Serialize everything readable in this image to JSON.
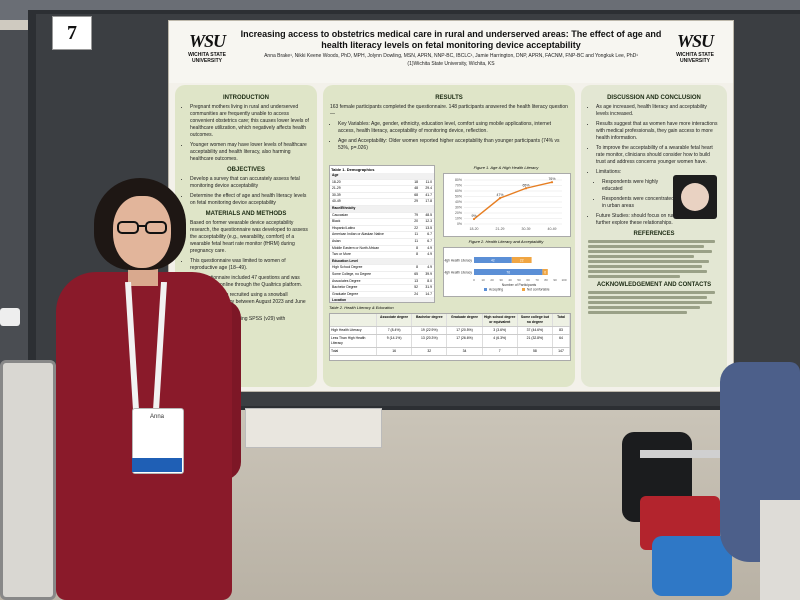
{
  "scene": {
    "board_number": "7"
  },
  "poster": {
    "title": "Increasing access to obstetrics medical care in rural and underserved areas: The effect of age and health literacy levels on fetal monitoring device acceptability",
    "authors": "Anna Brake¹, Nikki Keene Woods, PhD, MPH, Jolynn Dowling, MSN, APRN, NNP-BC, IBCLC¹, Jamie Harrington, DNP, APRN, FACNM, FNP-BC and Yongkuk Lee, PhD¹",
    "affiliation": "(1)Wichita State University, Wichita, KS",
    "logo_mark": "WSU",
    "logo_text": "WICHITA STATE UNIVERSITY",
    "introduction": {
      "heading": "INTRODUCTION",
      "bullets": [
        "Pregnant mothers living in rural and underserved communities are frequently unable to access convenient obstetrics care; this causes lower levels of healthcare utilization, which negatively affects health outcomes.",
        "Younger women may have lower levels of healthcare acceptability and health literacy, also harming healthcare outcomes."
      ]
    },
    "objectives": {
      "heading": "OBJECTIVES",
      "bullets": [
        "Develop a survey that can accurately assess fetal monitoring device acceptability",
        "Determine the effect of age and health literacy levels on fetal monitoring device acceptability"
      ]
    },
    "materials": {
      "heading": "MATERIALS AND METHODS",
      "bullets": [
        "Based on former wearable device acceptability research, the questionnaire was developed to assess the acceptability (e.g., wearability, comfort) of a wearable fetal heart rate monitor (fHRM) during pregnancy care.",
        "This questionnaire was limited to women of reproductive age (18–49).",
        "The questionnaire included 47 questions and was administered online through the Qualtrics platform.",
        "Participants were recruited using a snowball recruitment strategy between August 2023 and June 2024.",
        "Data were analyzed using SPSS (v29) with descriptive statistics."
      ]
    },
    "results": {
      "heading": "RESULTS",
      "intro": "163 female participants completed the questionnaire. 148 participants answered the health literacy question—",
      "bullets": [
        "Key Variables: Age, gender, ethnicity, education level, comfort using mobile applications, internet access, health literacy, acceptability of monitoring device, reflection.",
        "Age and Acceptability: Older women reported higher acceptability than younger participants (74% vs 53%, p=.026)"
      ],
      "table1_caption": "Table 1. Demographics",
      "table1_rows": [
        [
          "Age",
          "",
          ""
        ],
        [
          "18-20",
          "18",
          "11.0"
        ],
        [
          "21-29",
          "48",
          "29.4"
        ],
        [
          "30-39",
          "68",
          "41.7"
        ],
        [
          "40-49",
          "29",
          "17.8"
        ],
        [
          "Race/Ethnicity",
          "",
          ""
        ],
        [
          "Caucasian",
          "79",
          "48.5"
        ],
        [
          "Black",
          "20",
          "12.3"
        ],
        [
          "Hispanic/Latino",
          "22",
          "13.5"
        ],
        [
          "American Indian or Alaskan Native",
          "11",
          "6.7"
        ],
        [
          "Asian",
          "11",
          "6.7"
        ],
        [
          "Middle Eastern or North African",
          "8",
          "4.9"
        ],
        [
          "Two or More",
          "8",
          "4.9"
        ],
        [
          "Education Level",
          "",
          ""
        ],
        [
          "High School Degree",
          "8",
          "4.9"
        ],
        [
          "Some College, no Degree",
          "65",
          "39.9"
        ],
        [
          "Associates Degree",
          "13",
          "8.0"
        ],
        [
          "Bachelor Degree",
          "52",
          "31.9"
        ],
        [
          "Graduate Degree",
          "24",
          "14.7"
        ],
        [
          "Location",
          "",
          ""
        ],
        [
          "Urban",
          "152",
          "93.3"
        ],
        [
          "Rural",
          "8",
          "4.9"
        ]
      ],
      "figure1_caption": "Figure 1. Age & High Health Literacy",
      "figure2_caption": "Figure 2. Health Literacy and Acceptability",
      "table2_caption": "Table 2. Health Literacy & Education",
      "table2_headers": [
        "",
        "Associate degree",
        "Bachelor degree",
        "Graduate degree",
        "High school degree or equivalent",
        "Some college but no degree",
        "Total"
      ],
      "table2_rows": [
        [
          "High Health Literacy",
          "7 (8.4%)",
          "19 (22.9%)",
          "17 (20.5%)",
          "3 (3.6%)",
          "37 (44.6%)",
          "83"
        ],
        [
          "Less Than High Health Literacy",
          "9 (14.1%)",
          "13 (20.3%)",
          "17 (26.6%)",
          "4 (6.3%)",
          "21 (32.8%)",
          "64"
        ],
        [
          "Total",
          "16",
          "32",
          "34",
          "7",
          "58",
          "147"
        ]
      ]
    },
    "discussion": {
      "heading": "DISCUSSION AND CONCLUSION",
      "bullets": [
        "As age increased, health literacy and acceptability levels increased.",
        "Results suggest that as women have more interactions with medical professionals, they gain access to more health information.",
        "To improve the acceptability of a wearable fetal heart rate monitor, clinicians should consider how to build trust and address concerns younger women have.",
        "Limitations:",
        "Future Studies: should focus on rural populations to further explore these relationships."
      ],
      "limitations": [
        "Respondents were highly educated",
        "Respondents were concentrated in urban areas"
      ]
    },
    "references": {
      "heading": "REFERENCES"
    },
    "acknowledgement": {
      "heading": "ACKNOWLEDGEMENT AND CONTACTS"
    }
  },
  "badge": {
    "name": "Anna"
  },
  "chart_data": [
    {
      "type": "line",
      "title": "",
      "x": [
        "18-20",
        "21-29",
        "30-39",
        "40-49"
      ],
      "series": [
        {
          "name": "",
          "values": [
            9,
            47,
            65,
            76
          ]
        }
      ],
      "ylim": [
        0,
        80
      ],
      "yticks": [
        "0%",
        "10%",
        "20%",
        "30%",
        "40%",
        "50%",
        "60%",
        "70%",
        "80%"
      ],
      "data_labels": [
        "9%",
        "47%",
        "65%",
        "76%"
      ]
    },
    {
      "type": "bar",
      "title": "",
      "categories": [
        "Less Than High Health Literacy",
        "High Health Literacy"
      ],
      "series": [
        {
          "name": "Accepting",
          "values": [
            42,
            76
          ]
        },
        {
          "name": "Not comfortable",
          "values": [
            22,
            6
          ]
        }
      ],
      "xlabel": "Number of Participants",
      "xticks": [
        "0",
        "10",
        "20",
        "30",
        "40",
        "50",
        "60",
        "70",
        "80",
        "90",
        "100"
      ]
    }
  ]
}
